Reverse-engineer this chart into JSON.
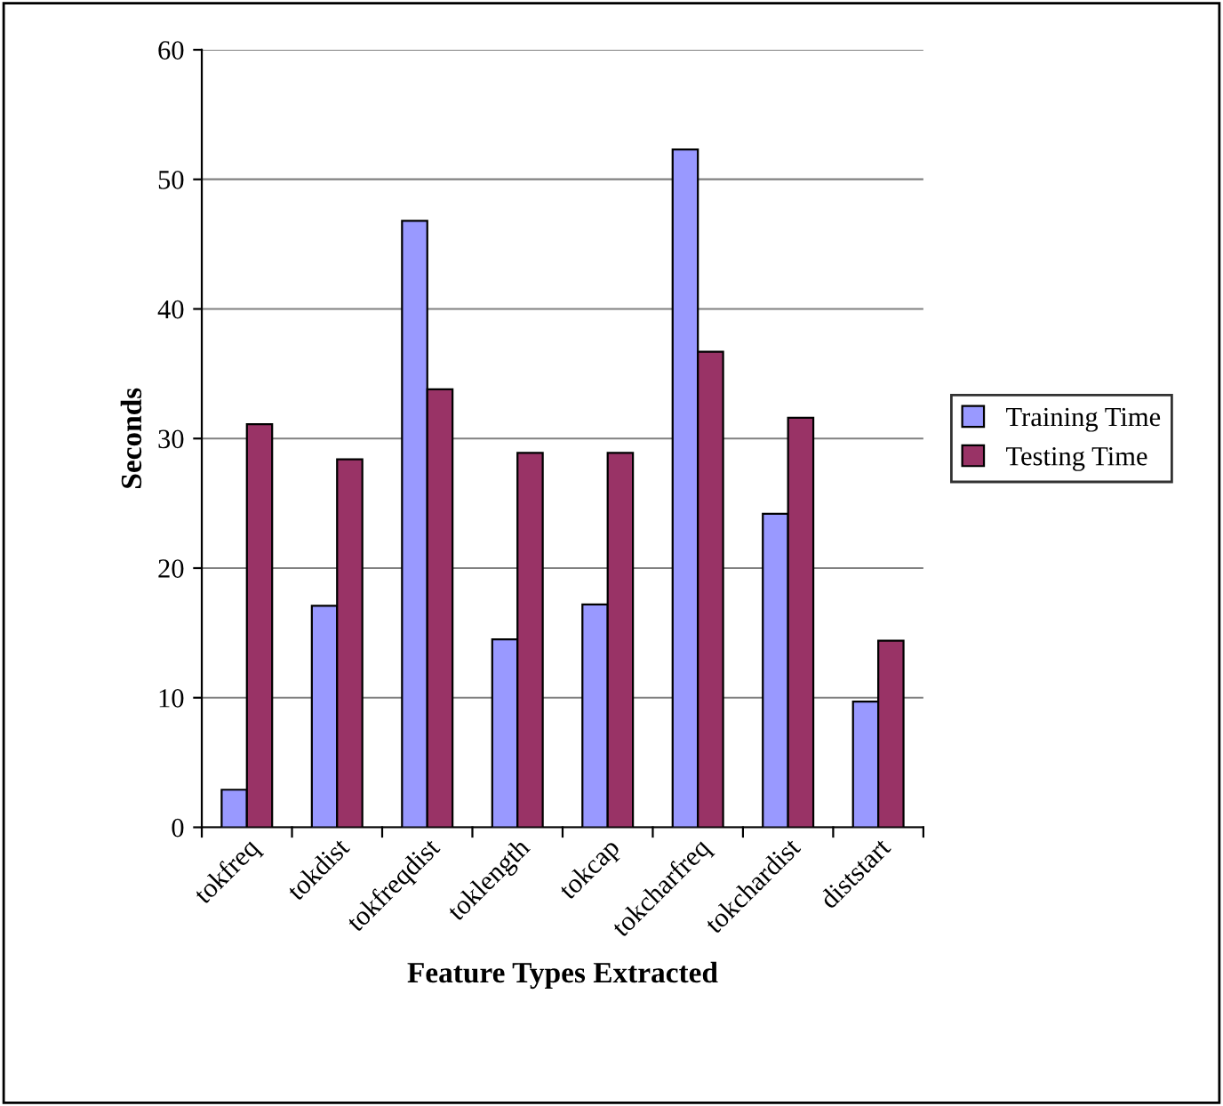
{
  "chart_data": {
    "type": "bar",
    "xlabel": "Feature Types Extracted",
    "ylabel": "Seconds",
    "categories": [
      "tokfreq",
      "tokdist",
      "tokfreqdist",
      "toklength",
      "tokcap",
      "tokcharfreq",
      "tokchardist",
      "diststart"
    ],
    "series": [
      {
        "name": "Training Time",
        "color": "#9999ff",
        "values": [
          2.9,
          17.1,
          46.8,
          14.5,
          17.2,
          52.3,
          24.2,
          9.7
        ]
      },
      {
        "name": "Testing Time",
        "color": "#993366",
        "values": [
          31.1,
          28.4,
          33.8,
          28.9,
          28.9,
          36.7,
          31.6,
          14.4
        ]
      }
    ],
    "ylim": [
      0,
      60
    ],
    "yticks": [
      0,
      10,
      20,
      30,
      40,
      50,
      60
    ],
    "grid": "y",
    "legend": "right"
  }
}
